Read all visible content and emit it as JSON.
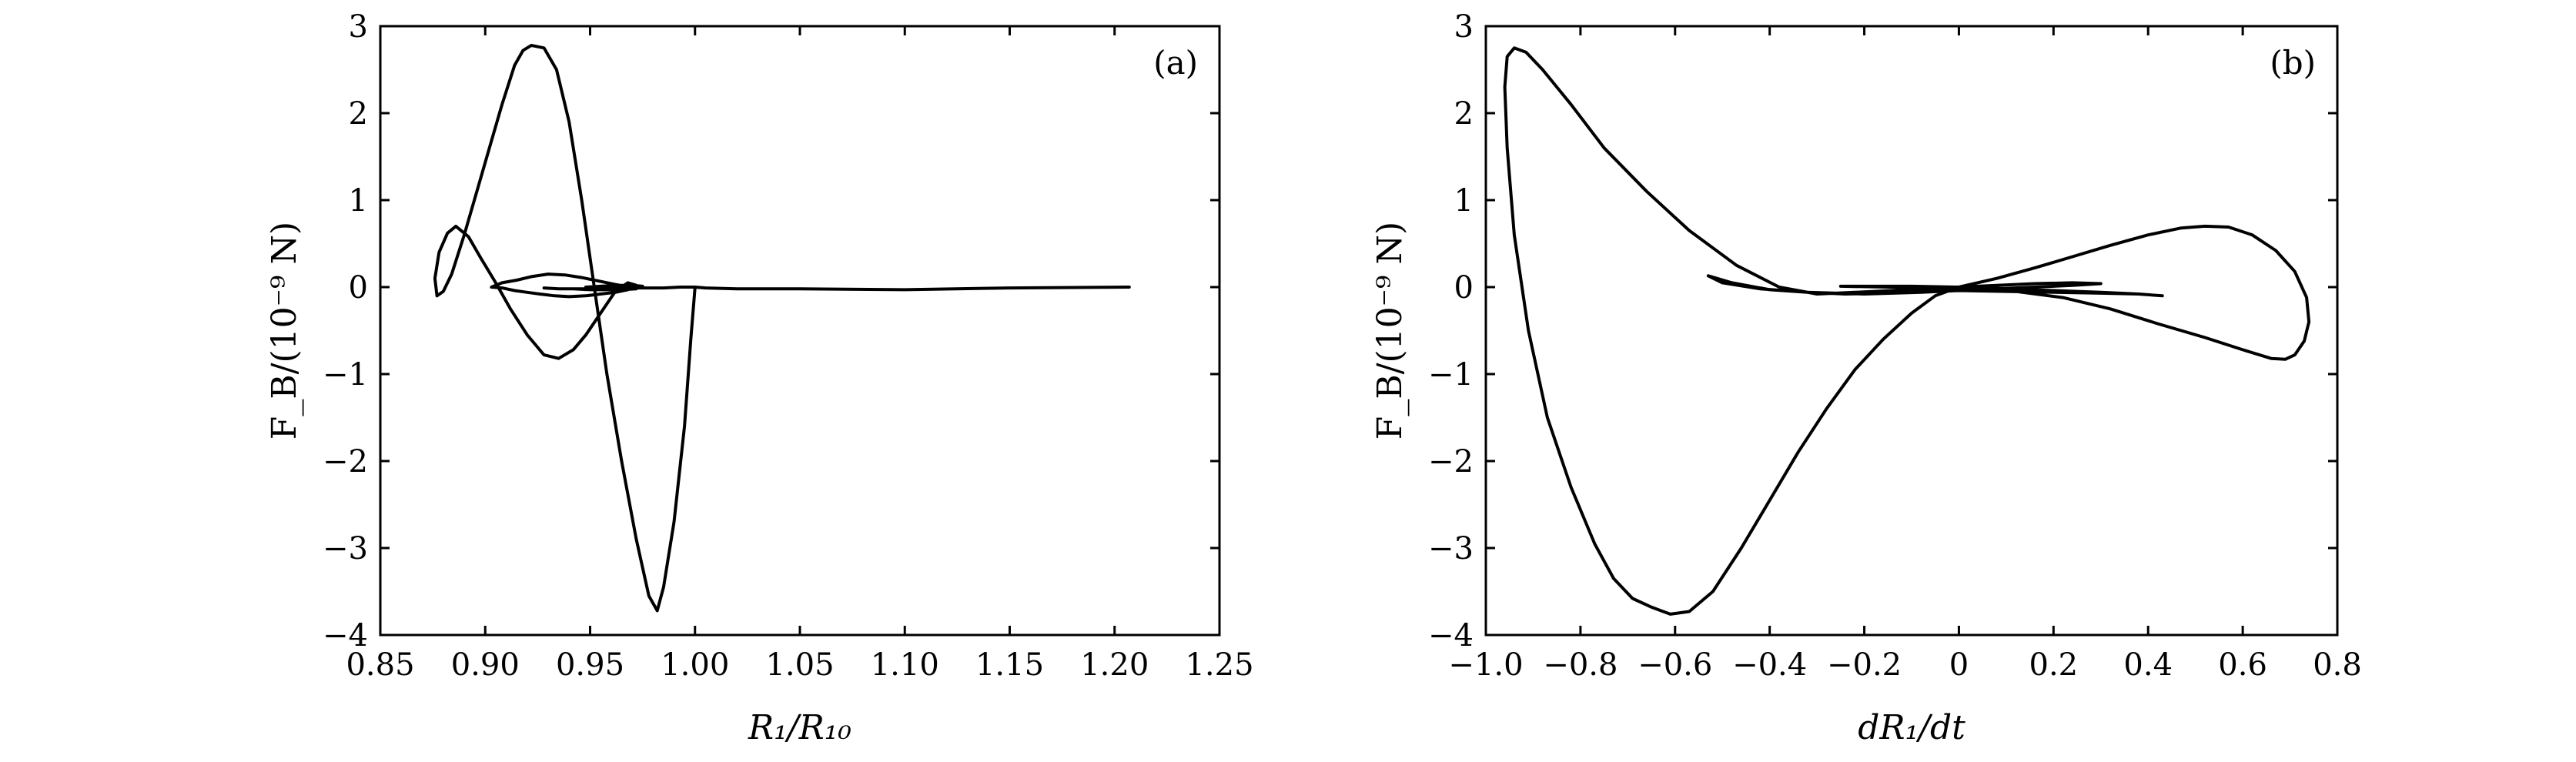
{
  "chart_data": [
    {
      "type": "line",
      "panel_label": "(a)",
      "xlabel": "R₁/R₁₀",
      "ylabel": "F_B/(10⁻⁹ N)",
      "xlim": [
        0.85,
        1.25
      ],
      "ylim": [
        -4,
        3
      ],
      "xticks": [
        0.85,
        0.9,
        0.95,
        1.0,
        1.05,
        1.1,
        1.15,
        1.2,
        1.25
      ],
      "xtick_labels": [
        "0.85",
        "0.90",
        "0.95",
        "1.00",
        "1.05",
        "1.10",
        "1.15",
        "1.20",
        "1.25"
      ],
      "yticks": [
        -4,
        -3,
        -2,
        -1,
        0,
        1,
        2,
        3
      ],
      "ytick_labels": [
        "−4",
        "−3",
        "−2",
        "−1",
        "0",
        "1",
        "2",
        "3"
      ],
      "grid": false,
      "series": [
        {
          "x": [
            1.207,
            1.15,
            1.1,
            1.05,
            1.02,
            1.005,
            1.0,
            0.998,
            0.995,
            0.99,
            0.985,
            0.982,
            0.978,
            0.972,
            0.965,
            0.958,
            0.952,
            0.946,
            0.94,
            0.934,
            0.928,
            0.922,
            0.918,
            0.914,
            0.908,
            0.902,
            0.896,
            0.89,
            0.884,
            0.88,
            0.877,
            0.876,
            0.878,
            0.882,
            0.886,
            0.892,
            0.898,
            0.905,
            0.912,
            0.92,
            0.928,
            0.935,
            0.942,
            0.948,
            0.955,
            0.962,
            0.968,
            0.972,
            0.968,
            0.962,
            0.955,
            0.948,
            0.94,
            0.933,
            0.926,
            0.92,
            0.914,
            0.908,
            0.903,
            0.908,
            0.915,
            0.922,
            0.93,
            0.938,
            0.946,
            0.954,
            0.962,
            0.969,
            0.972,
            0.965,
            0.958,
            0.95,
            0.942,
            0.935,
            0.928,
            0.935,
            0.945,
            0.955,
            0.963,
            0.97,
            0.975,
            0.97,
            0.963,
            0.955,
            0.948,
            0.955,
            0.965,
            0.975,
            0.985,
            0.993,
            1.0
          ],
          "y": [
            0.0,
            -0.01,
            -0.03,
            -0.02,
            -0.02,
            -0.01,
            0.0,
            -0.6,
            -1.6,
            -2.7,
            -3.45,
            -3.72,
            -3.55,
            -2.9,
            -2.0,
            -1.0,
            0.0,
            1.0,
            1.9,
            2.5,
            2.75,
            2.78,
            2.72,
            2.55,
            2.1,
            1.6,
            1.1,
            0.6,
            0.15,
            -0.05,
            -0.1,
            0.1,
            0.4,
            0.62,
            0.7,
            0.58,
            0.33,
            0.05,
            -0.25,
            -0.55,
            -0.78,
            -0.82,
            -0.72,
            -0.55,
            -0.3,
            -0.05,
            0.05,
            0.02,
            -0.03,
            -0.06,
            -0.08,
            -0.1,
            -0.11,
            -0.1,
            -0.08,
            -0.06,
            -0.04,
            -0.01,
            0.0,
            0.05,
            0.08,
            0.12,
            0.15,
            0.14,
            0.11,
            0.07,
            0.03,
            0.0,
            -0.02,
            -0.03,
            -0.03,
            -0.03,
            -0.02,
            -0.02,
            -0.01,
            -0.02,
            -0.02,
            -0.02,
            -0.01,
            0.0,
            0.01,
            0.02,
            0.02,
            0.01,
            0.0,
            0.0,
            -0.01,
            -0.01,
            -0.01,
            0.0,
            0.0
          ]
        }
      ]
    },
    {
      "type": "line",
      "panel_label": "(b)",
      "xlabel": "dR₁/dt",
      "ylabel": "F_B/(10⁻⁹ N)",
      "xlim": [
        -1.0,
        0.8
      ],
      "ylim": [
        -4,
        3
      ],
      "xticks": [
        -1.0,
        -0.8,
        -0.6,
        -0.4,
        -0.2,
        0,
        0.2,
        0.4,
        0.6,
        0.8
      ],
      "xtick_labels": [
        "−1.0",
        "−0.8",
        "−0.6",
        "−0.4",
        "−0.2",
        "0",
        "0.2",
        "0.4",
        "0.6",
        "0.8"
      ],
      "yticks": [
        -4,
        -3,
        -2,
        -1,
        0,
        1,
        2,
        3
      ],
      "ytick_labels": [
        "−4",
        "−3",
        "−2",
        "−1",
        "0",
        "1",
        "2",
        "3"
      ],
      "grid": false,
      "series": [
        {
          "x": [
            0.0,
            0.08,
            0.16,
            0.24,
            0.32,
            0.4,
            0.47,
            0.52,
            0.57,
            0.62,
            0.67,
            0.71,
            0.735,
            0.74,
            0.73,
            0.71,
            0.69,
            0.66,
            0.6,
            0.52,
            0.42,
            0.32,
            0.22,
            0.12,
            0.05,
            0.0,
            -0.05,
            -0.1,
            -0.16,
            -0.22,
            -0.28,
            -0.34,
            -0.4,
            -0.46,
            -0.52,
            -0.57,
            -0.61,
            -0.65,
            -0.69,
            -0.73,
            -0.77,
            -0.82,
            -0.87,
            -0.91,
            -0.94,
            -0.955,
            -0.96,
            -0.955,
            -0.94,
            -0.915,
            -0.88,
            -0.82,
            -0.75,
            -0.66,
            -0.57,
            -0.47,
            -0.38,
            -0.3,
            -0.22,
            -0.14,
            -0.07,
            0.0,
            0.08,
            0.16,
            0.24,
            0.3,
            0.24,
            0.16,
            0.08,
            0.0,
            -0.08,
            -0.16,
            -0.24,
            -0.32,
            -0.4,
            -0.48,
            -0.53,
            -0.5,
            -0.42,
            -0.32,
            -0.2,
            -0.08,
            0.0,
            0.1,
            0.2,
            0.3,
            0.38,
            0.43,
            0.38,
            0.3,
            0.2,
            0.1,
            0.0,
            -0.1,
            -0.2,
            -0.25,
            -0.15,
            -0.05,
            0.05,
            0.12,
            0.05,
            0.0
          ],
          "y": [
            0.0,
            0.1,
            0.22,
            0.35,
            0.48,
            0.6,
            0.68,
            0.7,
            0.69,
            0.6,
            0.42,
            0.18,
            -0.12,
            -0.4,
            -0.62,
            -0.78,
            -0.83,
            -0.82,
            -0.72,
            -0.58,
            -0.42,
            -0.25,
            -0.12,
            -0.05,
            -0.02,
            0.0,
            -0.1,
            -0.3,
            -0.6,
            -0.95,
            -1.4,
            -1.9,
            -2.45,
            -3.0,
            -3.5,
            -3.73,
            -3.76,
            -3.68,
            -3.58,
            -3.35,
            -2.95,
            -2.3,
            -1.5,
            -0.5,
            0.6,
            1.6,
            2.3,
            2.65,
            2.75,
            2.7,
            2.5,
            2.1,
            1.6,
            1.1,
            0.65,
            0.25,
            0.0,
            -0.08,
            -0.06,
            -0.04,
            -0.02,
            0.0,
            0.02,
            0.04,
            0.05,
            0.04,
            0.02,
            0.0,
            -0.02,
            -0.03,
            -0.05,
            -0.07,
            -0.08,
            -0.06,
            -0.03,
            0.05,
            0.13,
            0.05,
            -0.02,
            -0.06,
            -0.08,
            -0.06,
            -0.04,
            -0.05,
            -0.06,
            -0.07,
            -0.08,
            -0.1,
            -0.08,
            -0.06,
            -0.04,
            -0.02,
            0.0,
            0.01,
            0.01,
            0.01,
            0.0,
            -0.01,
            -0.01,
            -0.02,
            -0.01,
            0.0
          ]
        }
      ]
    }
  ]
}
